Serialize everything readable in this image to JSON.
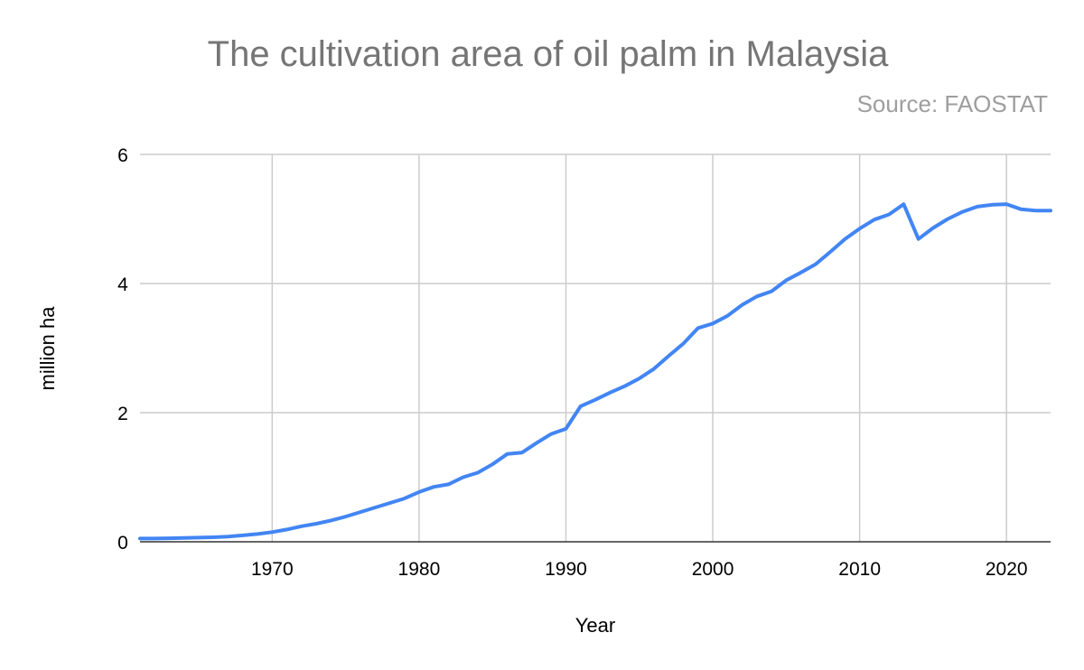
{
  "chart_data": {
    "type": "line",
    "title": "The cultivation area of oil palm in Malaysia",
    "subtitle": "Source: FAOSTAT",
    "xlabel": "Year",
    "ylabel": "million ha",
    "xlim": [
      1961,
      2023
    ],
    "ylim": [
      0,
      6
    ],
    "xticks": [
      1970,
      1980,
      1990,
      2000,
      2010,
      2020
    ],
    "yticks": [
      0,
      2,
      4,
      6
    ],
    "grid": true,
    "line_color": "#4285f4",
    "x": [
      1961,
      1962,
      1963,
      1964,
      1965,
      1966,
      1967,
      1968,
      1969,
      1970,
      1971,
      1972,
      1973,
      1974,
      1975,
      1976,
      1977,
      1978,
      1979,
      1980,
      1981,
      1982,
      1983,
      1984,
      1985,
      1986,
      1987,
      1988,
      1989,
      1990,
      1991,
      1992,
      1993,
      1994,
      1995,
      1996,
      1997,
      1998,
      1999,
      2000,
      2001,
      2002,
      2003,
      2004,
      2005,
      2006,
      2007,
      2008,
      2009,
      2010,
      2011,
      2012,
      2013,
      2014,
      2015,
      2016,
      2017,
      2018,
      2019,
      2020,
      2021,
      2022,
      2023
    ],
    "series": [
      {
        "values": [
          0.05,
          0.05,
          0.055,
          0.06,
          0.065,
          0.07,
          0.08,
          0.1,
          0.12,
          0.15,
          0.19,
          0.24,
          0.28,
          0.33,
          0.39,
          0.46,
          0.53,
          0.6,
          0.67,
          0.77,
          0.85,
          0.89,
          1.0,
          1.07,
          1.2,
          1.36,
          1.38,
          1.53,
          1.67,
          1.75,
          2.1,
          2.2,
          2.31,
          2.41,
          2.53,
          2.68,
          2.88,
          3.07,
          3.31,
          3.38,
          3.5,
          3.67,
          3.8,
          3.88,
          4.05,
          4.17,
          4.3,
          4.49,
          4.69,
          4.85,
          4.99,
          5.07,
          5.23,
          4.69,
          4.86,
          5.0,
          5.11,
          5.19,
          5.22,
          5.23,
          5.15,
          5.13,
          5.13
        ]
      }
    ]
  }
}
